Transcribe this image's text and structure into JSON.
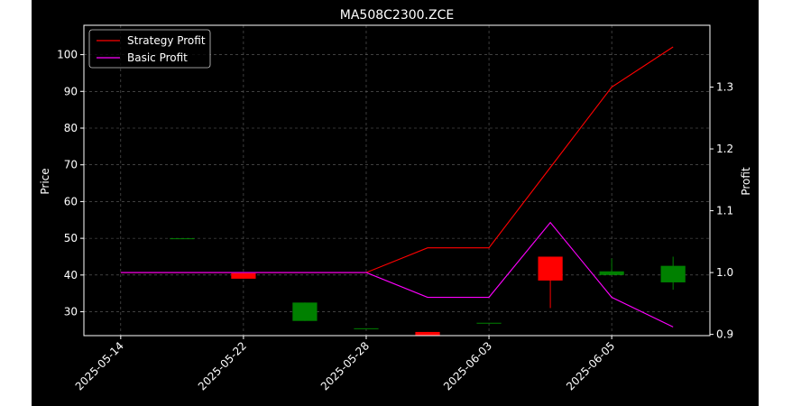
{
  "chart_data": {
    "type": "candlestick+line",
    "title": "MA508C2300.ZCE",
    "ylabel_left": "Price",
    "ylabel_right": "Profit",
    "ylim_left": [
      23.5,
      108
    ],
    "ylim_right": [
      0.898,
      1.4
    ],
    "yticks_left": [
      "30",
      "40",
      "50",
      "60",
      "70",
      "80",
      "90",
      "100"
    ],
    "yticks_right": [
      "0.9",
      "1.0",
      "1.1",
      "1.2",
      "1.3"
    ],
    "x_tick_labels": [
      "2025-05-14",
      "2025-05-22",
      "2025-05-28",
      "2025-06-03",
      "2025-06-05"
    ],
    "x_tick_positions": [
      0,
      2,
      4,
      6,
      8
    ],
    "grid": true,
    "legend_position": "top-left",
    "candles": [
      {
        "x": 1,
        "open": 50.0,
        "high": 50.0,
        "low": 50.0,
        "close": 50.0
      },
      {
        "x": 2,
        "open": 40.5,
        "high": 40.5,
        "low": 39.0,
        "close": 39.0
      },
      {
        "x": 3,
        "open": 27.5,
        "high": 32.5,
        "low": 27.5,
        "close": 32.5
      },
      {
        "x": 4,
        "open": 25.5,
        "high": 25.5,
        "low": 25.5,
        "close": 25.5
      },
      {
        "x": 5,
        "open": 24.5,
        "high": 24.5,
        "low": 23.5,
        "close": 23.5
      },
      {
        "x": 6,
        "open": 27.0,
        "high": 27.0,
        "low": 27.0,
        "close": 27.0
      },
      {
        "x": 7,
        "open": 45.0,
        "high": 45.0,
        "low": 31.0,
        "close": 38.5
      },
      {
        "x": 8,
        "open": 40.0,
        "high": 44.5,
        "low": 40.0,
        "close": 41.0
      },
      {
        "x": 9,
        "open": 38.0,
        "high": 45.0,
        "low": 36.0,
        "close": 42.5
      }
    ],
    "series": [
      {
        "name": "Strategy Profit",
        "color": "#ff0000",
        "x": [
          0,
          1,
          2,
          3,
          4,
          5,
          6,
          7,
          8,
          9
        ],
        "values": [
          1.0,
          1.0,
          1.0,
          1.0,
          1.0,
          1.04,
          1.04,
          1.17,
          1.3,
          1.365
        ]
      },
      {
        "name": "Basic Profit",
        "color": "#ff00ff",
        "x": [
          0,
          1,
          2,
          3,
          4,
          5,
          6,
          7,
          8,
          9
        ],
        "values": [
          1.0,
          1.0,
          1.0,
          1.0,
          1.0,
          0.96,
          0.96,
          1.081,
          0.96,
          0.912
        ]
      }
    ],
    "colors": {
      "up": "#008000",
      "down": "#ff0000",
      "axes": "#ffffff",
      "grid": "#808080",
      "background": "#000000"
    }
  }
}
